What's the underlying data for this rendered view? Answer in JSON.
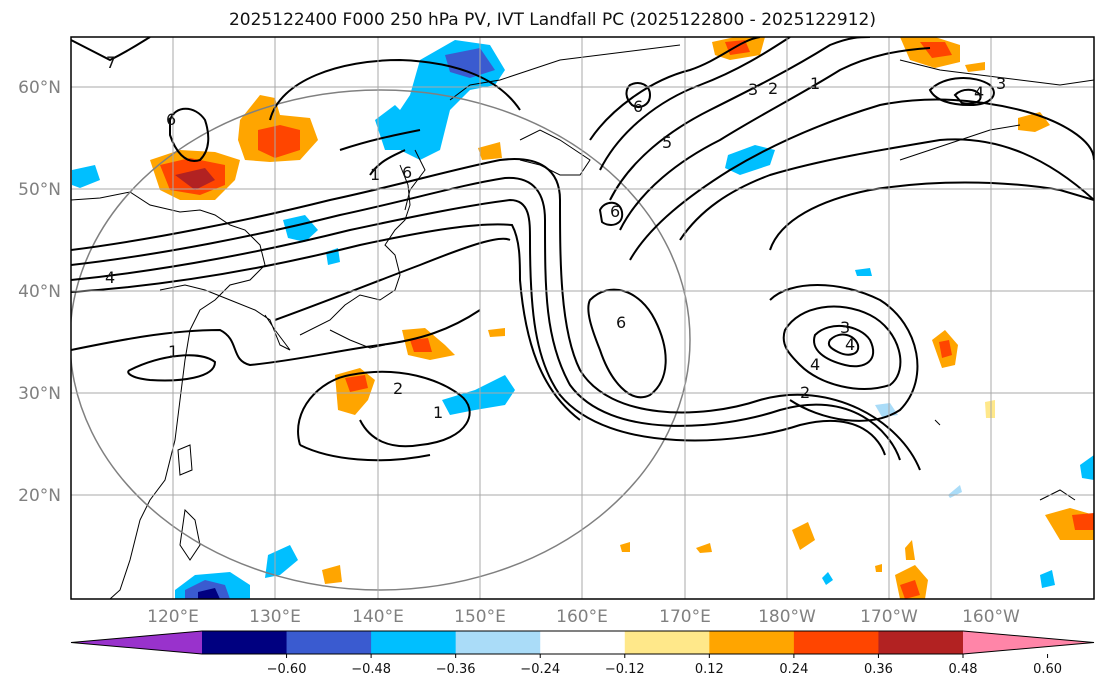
{
  "title": "2025122400 F000 250 hPa PV, IVT Landfall PC (2025122800 - 2025122912)",
  "lat_labels": [
    "60°N",
    "50°N",
    "40°N",
    "30°N",
    "20°N"
  ],
  "lon_labels": [
    "120°E",
    "130°E",
    "140°E",
    "150°E",
    "160°E",
    "170°E",
    "180°W",
    "170°W",
    "160°W"
  ],
  "colorbar": {
    "ticks": [
      "−0.60",
      "−0.48",
      "−0.36",
      "−0.24",
      "−0.12",
      "0.12",
      "0.24",
      "0.36",
      "0.48",
      "0.60"
    ],
    "colors": [
      "#9932cc",
      "#000080",
      "#3a5bd0",
      "#00bfff",
      "#aadcf8",
      "#ffffff",
      "#ffe88a",
      "#ffa500",
      "#ff4500",
      "#b22222",
      "#ff85a8"
    ]
  },
  "contour_labels": [
    "7",
    "6",
    "1",
    "6",
    "4",
    "1",
    "2",
    "1",
    "5",
    "3",
    "2",
    "1",
    "3",
    "4",
    "6",
    "6",
    "3",
    "6",
    "4",
    "2",
    "4"
  ]
}
